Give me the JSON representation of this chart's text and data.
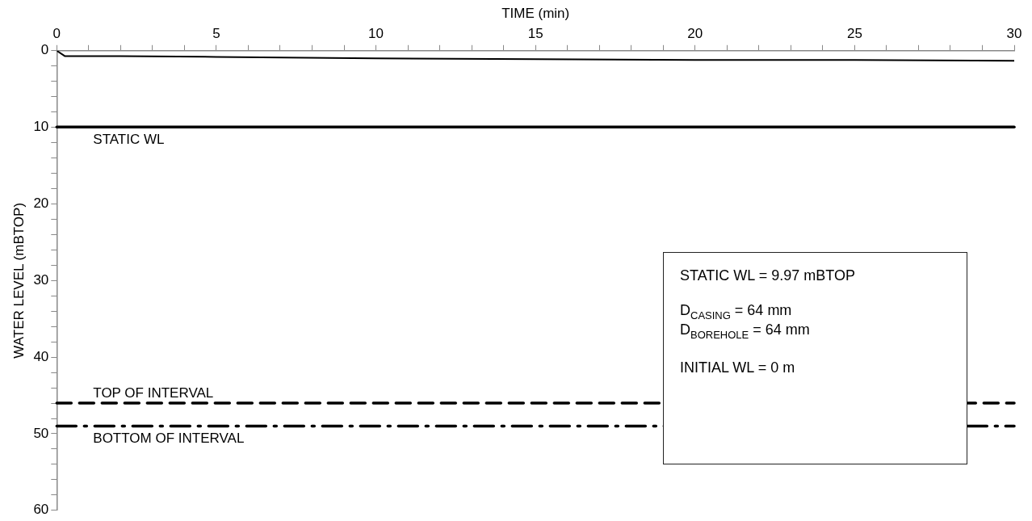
{
  "chart_data": {
    "type": "line",
    "xlabel": "TIME (min)",
    "ylabel": "WATER LEVEL (mBTOP)",
    "x": [
      0,
      0.25,
      2,
      5,
      10,
      15,
      20,
      25,
      30
    ],
    "series": [
      {
        "color": "#000000",
        "values": [
          0,
          0.7,
          0.7,
          0.8,
          1.0,
          1.1,
          1.2,
          1.2,
          1.3
        ]
      }
    ],
    "xlim": [
      0,
      30
    ],
    "ylim": [
      60,
      0
    ],
    "xticks": [
      0,
      {
        "value": 1,
        "label": null
      },
      {
        "value": 2,
        "label": null
      },
      {
        "value": 3,
        "label": null
      },
      {
        "value": 4,
        "label": null
      },
      5,
      {
        "value": 6,
        "label": null
      },
      {
        "value": 7,
        "label": null
      },
      {
        "value": 8,
        "label": null
      },
      {
        "value": 9,
        "label": null
      },
      10,
      {
        "value": 11,
        "label": null
      },
      {
        "value": 12,
        "label": null
      },
      {
        "value": 13,
        "label": null
      },
      {
        "value": 14,
        "label": null
      },
      15,
      {
        "value": 16,
        "label": null
      },
      {
        "value": 17,
        "label": null
      },
      {
        "value": 18,
        "label": null
      },
      {
        "value": 19,
        "label": null
      },
      20,
      {
        "value": 21,
        "label": null
      },
      {
        "value": 22,
        "label": null
      },
      {
        "value": 23,
        "label": null
      },
      {
        "value": 24,
        "label": null
      },
      25,
      {
        "value": 26,
        "label": null
      },
      {
        "value": 27,
        "label": null
      },
      {
        "value": 28,
        "label": null
      },
      {
        "value": 29,
        "label": null
      },
      30
    ],
    "yticks": [
      0,
      {
        "value": 2,
        "label": null
      },
      {
        "value": 4,
        "label": null
      },
      {
        "value": 6,
        "label": null
      },
      {
        "value": 8,
        "label": null
      },
      10,
      {
        "value": 12,
        "label": null
      },
      {
        "value": 14,
        "label": null
      },
      {
        "value": 16,
        "label": null
      },
      {
        "value": 18,
        "label": null
      },
      20,
      {
        "value": 22,
        "label": null
      },
      {
        "value": 24,
        "label": null
      },
      {
        "value": 26,
        "label": null
      },
      {
        "value": 28,
        "label": null
      },
      30,
      {
        "value": 32,
        "label": null
      },
      {
        "value": 34,
        "label": null
      },
      {
        "value": 36,
        "label": null
      },
      {
        "value": 38,
        "label": null
      },
      40,
      {
        "value": 42,
        "label": null
      },
      {
        "value": 44,
        "label": null
      },
      {
        "value": 46,
        "label": null
      },
      {
        "value": 48,
        "label": null
      },
      50,
      {
        "value": 52,
        "label": null
      },
      {
        "value": 54,
        "label": null
      },
      {
        "value": 56,
        "label": null
      },
      {
        "value": 58,
        "label": null
      },
      60
    ],
    "ref_lines": [
      {
        "axis": "y",
        "value": 9.97,
        "label": "STATIC WL",
        "color": "#000000",
        "line_style": "solid"
      },
      {
        "axis": "y",
        "value": 46,
        "label": "TOP OF INTERVAL",
        "color": "#000000",
        "line_style": "dashed"
      },
      {
        "axis": "y",
        "value": 49,
        "label": "BOTTOM OF INTERVAL",
        "color": "#000000",
        "line_style": "dashdot"
      }
    ],
    "annotations": [
      "STATIC WL = 9.97 mBTOP",
      "D$_{CASING}$ = 64 mm\nD$_{BOREHOLE}$ = 64 mm",
      "INITIAL WL = 0 m"
    ],
    "grid": false,
    "legend": false,
    "marker": "none",
    "line_style": "solid"
  }
}
